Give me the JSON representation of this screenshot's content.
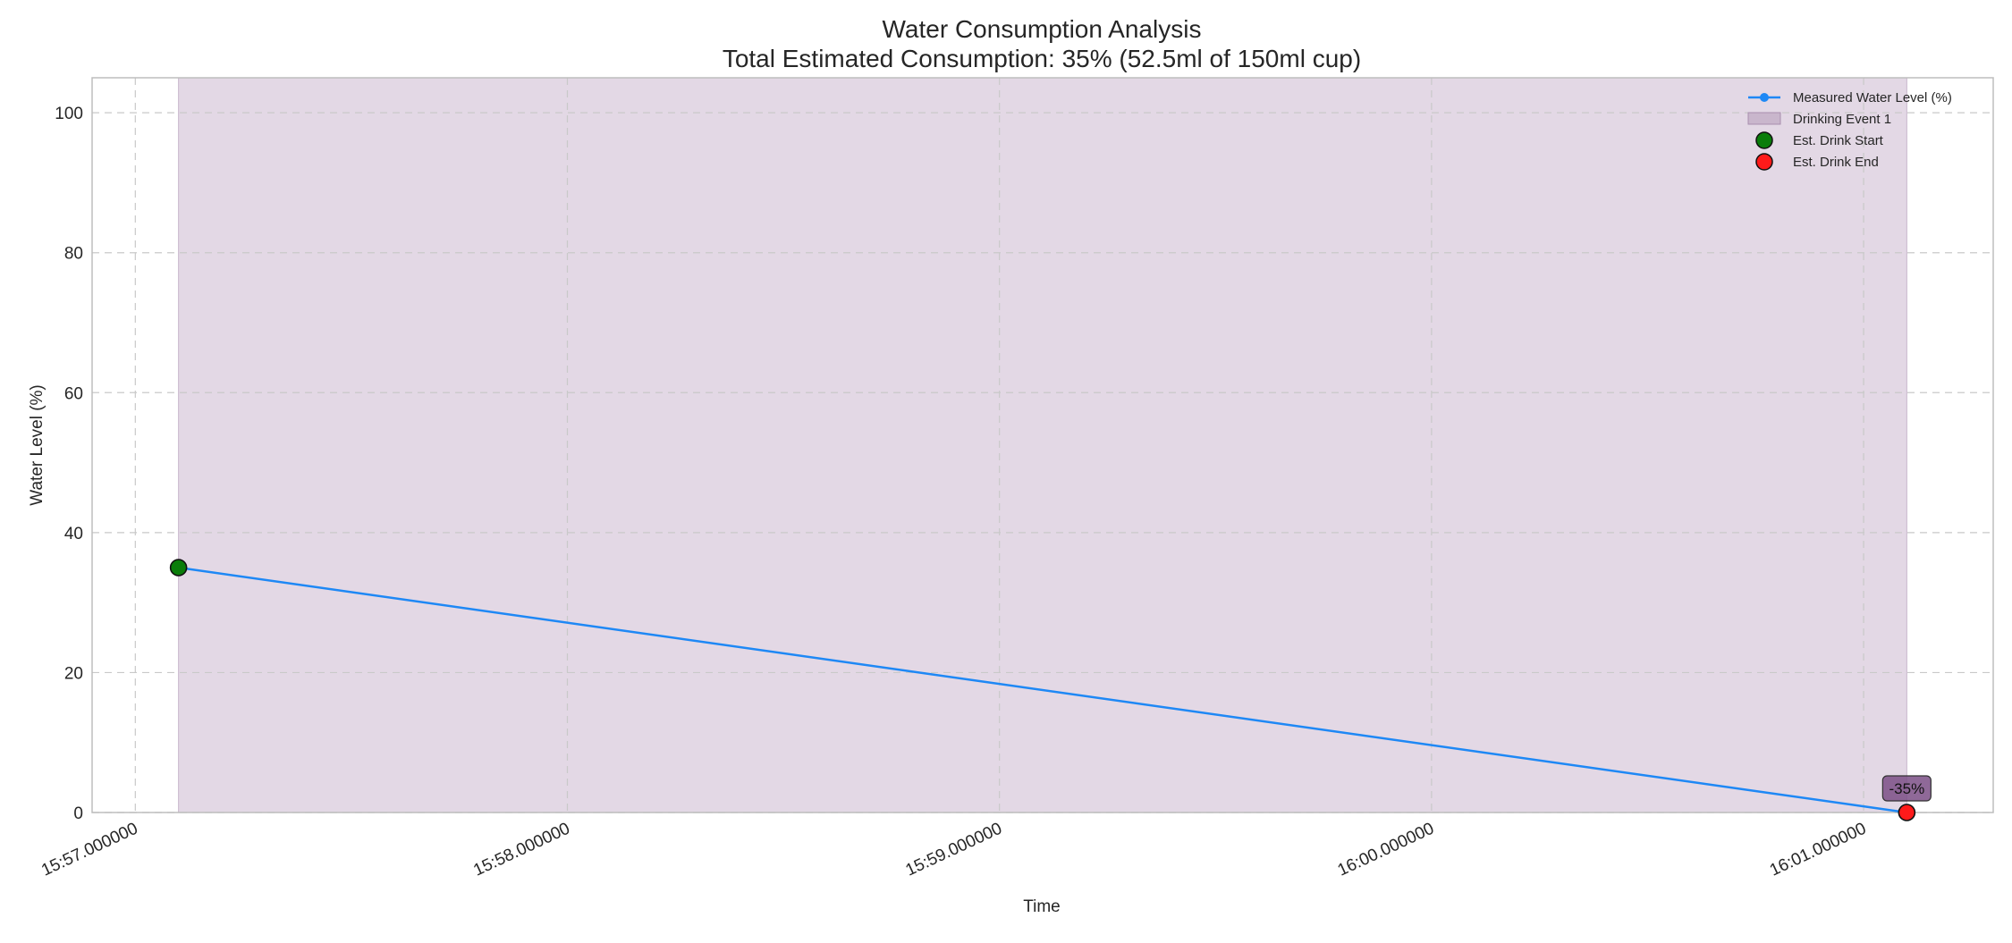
{
  "chart_data": {
    "type": "line",
    "title": "Water Consumption Analysis",
    "subtitle": "Total Estimated Consumption: 35% (52.5ml of 150ml cup)",
    "xlabel": "Time",
    "ylabel": "Water Level (%)",
    "x_ticks": [
      "15:57.000000",
      "15:58.000000",
      "15:59.000000",
      "16:00.000000",
      "16:01.000000"
    ],
    "y_ticks": [
      0,
      20,
      40,
      60,
      80,
      100
    ],
    "ylim": [
      0,
      105
    ],
    "xlim": [
      "15:56.900000",
      "16:01.300000"
    ],
    "grid": true,
    "legend_position": "top-right",
    "series": [
      {
        "name": "Measured Water Level (%)",
        "color": "#1e88f5",
        "points": [
          {
            "x": "15:57.100000",
            "y": 35
          },
          {
            "x": "16:01.100000",
            "y": 0
          }
        ]
      }
    ],
    "shaded_regions": [
      {
        "name": "Drinking Event 1",
        "x_start": "15:57.100000",
        "x_end": "16:01.100000",
        "color": "#e3d8e5"
      }
    ],
    "markers": [
      {
        "name": "Est. Drink Start",
        "x": "15:57.100000",
        "y": 35,
        "color": "#0a7d0a"
      },
      {
        "name": "Est. Drink End",
        "x": "16:01.100000",
        "y": 0,
        "color": "#ff1a1a"
      }
    ],
    "annotations": [
      {
        "text": "-35%",
        "x": "16:01.100000",
        "y": 0,
        "box_color": "#7b4f86"
      }
    ]
  }
}
